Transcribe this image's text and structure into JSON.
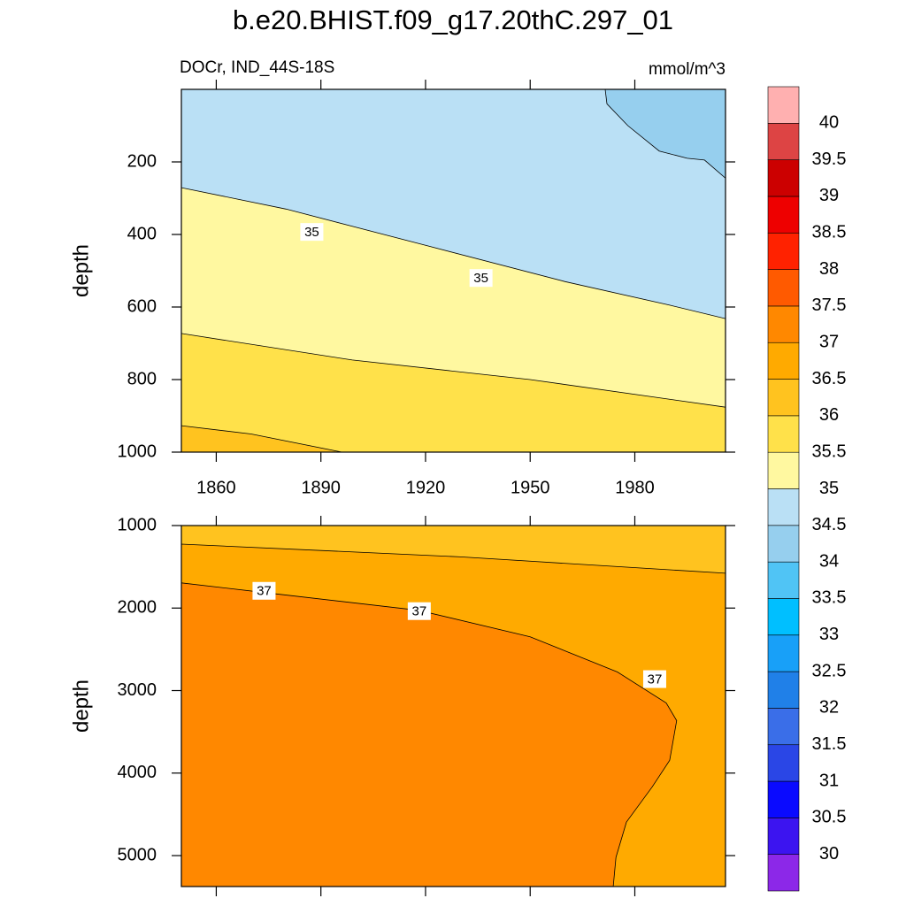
{
  "title": "b.e20.BHIST.f09_g17.20thC.297_01",
  "subtitle": "DOCr, IND_44S-18S",
  "units": "mmol/m^3",
  "colorbar": {
    "levels": [
      30,
      30.5,
      31,
      31.5,
      32,
      32.5,
      33,
      33.5,
      34,
      34.5,
      35,
      35.5,
      36,
      36.5,
      37,
      37.5,
      38,
      38.5,
      39,
      39.5,
      40
    ],
    "colors": [
      "#8c28e8",
      "#3c14f0",
      "#0a0aff",
      "#2a46e6",
      "#3a6ee8",
      "#2080e8",
      "#18a0f8",
      "#00bfff",
      "#50c4f5",
      "#96cfee",
      "#bae0f5",
      "#fff8a0",
      "#ffe14a",
      "#ffc31f",
      "#ffaa00",
      "#ff8800",
      "#ff5a00",
      "#ff2200",
      "#ee0000",
      "#cc0000",
      "#dd4444",
      "#ffb0b0"
    ]
  },
  "chart_data": [
    {
      "type": "contour",
      "ylabel": "depth",
      "xlim": [
        1850,
        2006
      ],
      "xticks": [
        1860,
        1890,
        1920,
        1950,
        1980
      ],
      "xtick_labels": true,
      "ylim": [
        1000,
        0
      ],
      "yticks": [
        200,
        400,
        600,
        800,
        1000
      ],
      "base_level": 34.5,
      "regions": [
        {
          "level": 34,
          "x": [
            1971.5,
            1972,
            1978,
            1987,
            1995,
            2000,
            2006,
            2006
          ],
          "depth": [
            0,
            40,
            100,
            170,
            190,
            195,
            245,
            0
          ]
        },
        {
          "level": 35,
          "x": [
            1850,
            1880,
            1920,
            1960,
            1990,
            2006,
            2006,
            1850
          ],
          "depth": [
            271,
            330,
            430,
            530,
            595,
            632,
            1000,
            1000
          ]
        },
        {
          "level": 35.5,
          "x": [
            1850,
            1899,
            1950,
            2006,
            2006,
            1850
          ],
          "depth": [
            673,
            746,
            800,
            876,
            1000,
            1000
          ]
        },
        {
          "level": 36,
          "x": [
            1850,
            1870,
            1896,
            1850
          ],
          "depth": [
            927,
            950,
            1000,
            1000
          ]
        }
      ],
      "contour_labels": [
        {
          "value": 35,
          "x": 1887.4,
          "depth": 393
        },
        {
          "value": 35,
          "x": 1935.9,
          "depth": 520
        }
      ]
    },
    {
      "type": "contour",
      "ylabel": "depth",
      "xlim": [
        1850,
        2006
      ],
      "xticks": [
        1860,
        1890,
        1920,
        1950,
        1980
      ],
      "xtick_labels": false,
      "ylim": [
        5375,
        1000
      ],
      "yticks": [
        1000,
        2000,
        3000,
        4000,
        5000
      ],
      "base_level": 36,
      "regions": [
        {
          "level": 36.5,
          "x": [
            1850,
            1930,
            2006,
            2006,
            1850
          ],
          "depth": [
            1225,
            1380,
            1578,
            5375,
            5375
          ]
        },
        {
          "level": 37,
          "x": [
            1850,
            1874,
            1918,
            1950,
            1975,
            1989,
            1992,
            1990,
            1985,
            1977.6,
            1974.6,
            1973.8,
            1850
          ],
          "depth": [
            1695,
            1813,
            2027,
            2348,
            2775,
            3150,
            3364,
            3845,
            4166,
            4594,
            5021,
            5375,
            5375
          ]
        }
      ],
      "contour_labels": [
        {
          "value": 37,
          "x": 1873.7,
          "depth": 1791
        },
        {
          "value": 37,
          "x": 1918.2,
          "depth": 2037
        },
        {
          "value": 37,
          "x": 1985.7,
          "depth": 2861
        }
      ]
    }
  ]
}
